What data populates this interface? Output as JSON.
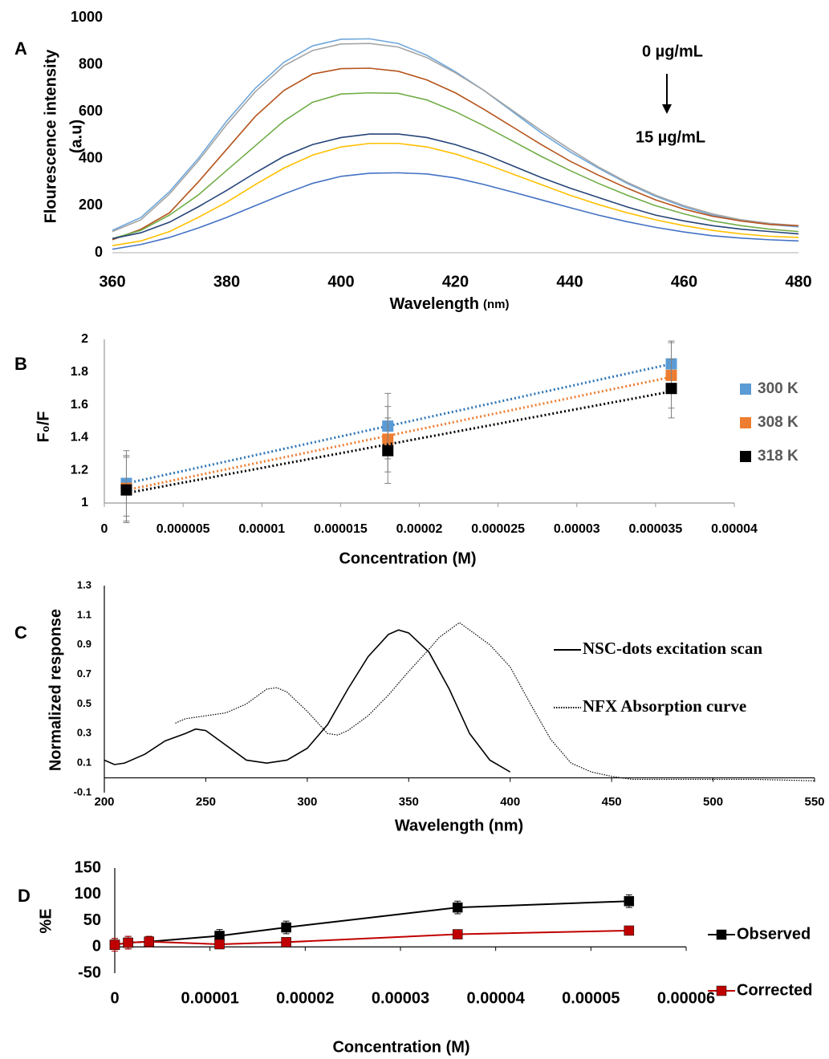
{
  "chart_data": [
    {
      "type": "line",
      "panel": "A",
      "xlabel": "Wavelength",
      "xlabel_unit": "(nm)",
      "ylabel": [
        "Flourescence intensity",
        "(a.u)"
      ],
      "annotations": [
        "0 µg/mL",
        "15 µg/mL"
      ],
      "x": [
        360,
        365,
        370,
        375,
        380,
        385,
        390,
        395,
        400,
        405,
        410,
        415,
        420,
        425,
        430,
        435,
        440,
        445,
        450,
        455,
        460,
        465,
        470,
        475,
        480
      ],
      "series": [
        {
          "color": "#6fa8dc",
          "values": [
            95,
            150,
            260,
            400,
            560,
            700,
            810,
            880,
            908,
            910,
            890,
            840,
            770,
            690,
            600,
            510,
            430,
            360,
            295,
            240,
            195,
            160,
            135,
            120,
            110
          ]
        },
        {
          "color": "#a5a5a5",
          "values": [
            90,
            140,
            250,
            390,
            545,
            685,
            795,
            860,
            888,
            890,
            875,
            830,
            765,
            690,
            605,
            520,
            440,
            365,
            300,
            245,
            200,
            165,
            140,
            125,
            115
          ]
        },
        {
          "color": "#b5541c",
          "values": [
            55,
            100,
            170,
            300,
            440,
            580,
            690,
            760,
            783,
            785,
            772,
            735,
            680,
            610,
            535,
            460,
            390,
            330,
            275,
            225,
            185,
            155,
            135,
            120,
            115
          ]
        },
        {
          "color": "#70ad47",
          "values": [
            60,
            95,
            160,
            245,
            350,
            455,
            560,
            640,
            675,
            680,
            678,
            650,
            600,
            540,
            475,
            410,
            350,
            295,
            245,
            200,
            165,
            135,
            115,
            100,
            90
          ]
        },
        {
          "color": "#264478",
          "values": [
            60,
            85,
            130,
            195,
            265,
            340,
            410,
            460,
            490,
            505,
            505,
            490,
            460,
            420,
            370,
            320,
            275,
            235,
            195,
            160,
            135,
            115,
            100,
            90,
            80
          ]
        },
        {
          "color": "#ffc000",
          "values": [
            30,
            50,
            90,
            150,
            215,
            290,
            360,
            415,
            450,
            465,
            465,
            450,
            420,
            380,
            335,
            290,
            245,
            205,
            170,
            140,
            115,
            95,
            80,
            70,
            65
          ]
        },
        {
          "color": "#4472c4",
          "values": [
            15,
            35,
            65,
            105,
            150,
            200,
            250,
            295,
            325,
            338,
            340,
            335,
            318,
            290,
            258,
            225,
            192,
            160,
            132,
            108,
            88,
            72,
            62,
            55,
            50
          ]
        }
      ],
      "xlim": [
        360,
        480
      ],
      "xticks": [
        360,
        380,
        400,
        420,
        440,
        460,
        480
      ],
      "ylim": [
        0,
        1000
      ],
      "yticks": [
        0,
        200,
        400,
        600,
        800,
        1000
      ]
    },
    {
      "type": "scatter",
      "panel": "B",
      "xlabel": "Concentration (M)",
      "ylabel": "F₀/F",
      "trendline": true,
      "x": [
        1.4e-06,
        1.8e-05,
        3.6e-05
      ],
      "series": [
        {
          "name": "300 K",
          "color": "#5b9bd5",
          "trend_color": "#2e75b6",
          "values": [
            1.12,
            1.47,
            1.85
          ],
          "errors": [
            0.2,
            0.2,
            0.14
          ]
        },
        {
          "name": "308 K",
          "color": "#ed7d31",
          "trend_color": "#ed7d31",
          "values": [
            1.09,
            1.39,
            1.78
          ],
          "errors": [
            0.2,
            0.2,
            0.2
          ]
        },
        {
          "name": "318 K",
          "color": "#000000",
          "trend_color": "#000000",
          "values": [
            1.08,
            1.32,
            1.7
          ],
          "errors": [
            0.2,
            0.2,
            0.18
          ]
        }
      ],
      "xlim": [
        0,
        4e-05
      ],
      "xticks": [
        0,
        5e-06,
        1e-05,
        1.5e-05,
        2e-05,
        2.5e-05,
        3e-05,
        3.5e-05,
        4e-05
      ],
      "ylim": [
        1,
        2
      ],
      "yticks": [
        1,
        1.2,
        1.4,
        1.6,
        1.8,
        2
      ]
    },
    {
      "type": "line",
      "panel": "C",
      "xlabel": "Wavelength (nm)",
      "ylabel": "Normalized response",
      "series": [
        {
          "name": "NSC-dots excitation scan",
          "color": "#000000",
          "style": "solid",
          "x": [
            200,
            205,
            210,
            220,
            230,
            240,
            245,
            250,
            260,
            270,
            280,
            290,
            300,
            310,
            320,
            330,
            340,
            345,
            350,
            360,
            370,
            380,
            390,
            400
          ],
          "values": [
            0.12,
            0.09,
            0.1,
            0.16,
            0.25,
            0.3,
            0.33,
            0.32,
            0.22,
            0.12,
            0.1,
            0.12,
            0.2,
            0.36,
            0.6,
            0.82,
            0.97,
            1.0,
            0.98,
            0.85,
            0.6,
            0.3,
            0.12,
            0.04
          ]
        },
        {
          "name": "NFX Absorption curve",
          "color": "#000000",
          "style": "dotted",
          "x": [
            235,
            240,
            250,
            260,
            270,
            280,
            285,
            290,
            300,
            310,
            315,
            320,
            330,
            340,
            350,
            360,
            365,
            370,
            375,
            380,
            390,
            400,
            410,
            420,
            430,
            440,
            450,
            460,
            470,
            480,
            500,
            520,
            550
          ],
          "values": [
            0.37,
            0.4,
            0.42,
            0.44,
            0.5,
            0.6,
            0.61,
            0.58,
            0.45,
            0.3,
            0.29,
            0.32,
            0.42,
            0.56,
            0.72,
            0.87,
            0.95,
            1.0,
            1.05,
            1.0,
            0.9,
            0.75,
            0.5,
            0.26,
            0.1,
            0.04,
            0.01,
            -0.01,
            -0.01,
            -0.01,
            -0.01,
            -0.01,
            -0.02
          ]
        }
      ],
      "xlim": [
        200,
        550
      ],
      "xticks": [
        200,
        250,
        300,
        350,
        400,
        450,
        500,
        550
      ],
      "ylim": [
        -0.1,
        1.3
      ],
      "yticks": [
        -0.1,
        0.1,
        0.3,
        0.5,
        0.7,
        0.9,
        1.1,
        1.3
      ]
    },
    {
      "type": "line",
      "panel": "D",
      "xlabel": "Concentration (M)",
      "ylabel": "%E",
      "markers": true,
      "x": [
        0,
        1.4e-06,
        3.6e-06,
        1.1e-05,
        1.8e-05,
        3.6e-05,
        5.4e-05
      ],
      "series": [
        {
          "name": "Observed",
          "color": "#000000",
          "values": [
            4,
            8,
            10,
            21,
            37,
            75,
            87
          ],
          "errors": [
            12,
            12,
            10,
            12,
            12,
            12,
            12
          ]
        },
        {
          "name": "Corrected",
          "color": "#c00000",
          "values": [
            4,
            8,
            10,
            5,
            9,
            24,
            31
          ],
          "errors": [
            12,
            12,
            10,
            5,
            5,
            5,
            5
          ]
        }
      ],
      "xlim": [
        0,
        6e-05
      ],
      "xticks": [
        0,
        1e-05,
        2e-05,
        3e-05,
        4e-05,
        5e-05,
        6e-05
      ],
      "ylim": [
        -50,
        150
      ],
      "yticks": [
        -50,
        0,
        50,
        100,
        150
      ]
    }
  ]
}
